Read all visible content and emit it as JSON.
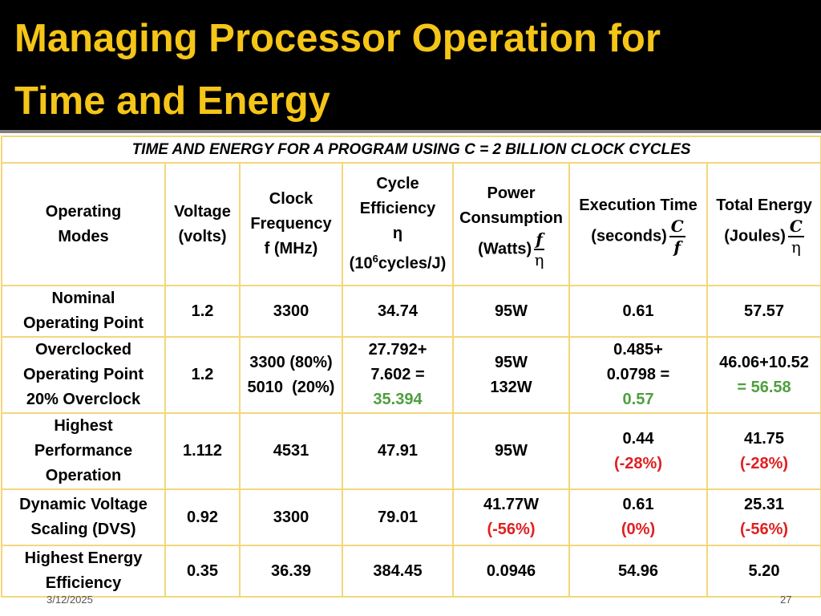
{
  "slide": {
    "title_line1": "Managing Processor Operation for",
    "title_line2": "Time and Energy",
    "date": "3/12/2025",
    "page_number": "27",
    "title_color": "#f5c518"
  },
  "table": {
    "caption": "TIME AND ENERGY FOR A PROGRAM USING C = 2 BILLION CLOCK CYCLES",
    "headers": {
      "modes": [
        "Operating",
        "Modes"
      ],
      "voltage": [
        "Voltage",
        "(volts)"
      ],
      "clock": [
        "Clock",
        "Frequency",
        "f (MHz)"
      ],
      "cycle_eff": [
        "Cycle",
        "Efficiency",
        "η",
        "(10",
        "6",
        "cycles/J)"
      ],
      "power": [
        "Power",
        "Consumption",
        "(Watts)"
      ],
      "power_frac": {
        "num": "f",
        "den": "η"
      },
      "exec": [
        "Execution Time",
        "(seconds)"
      ],
      "exec_frac": {
        "num": "C",
        "den": "f"
      },
      "energy": [
        "Total Energy",
        "(Joules)"
      ],
      "energy_frac": {
        "num": "C",
        "den": "η"
      }
    },
    "rows": [
      {
        "mode": [
          "Nominal",
          "Operating Point"
        ],
        "voltage": "1.2",
        "clock": [
          "3300"
        ],
        "eff": [
          "34.74"
        ],
        "power": [
          "95W"
        ],
        "exec": [
          "0.61"
        ],
        "energy": [
          "57.57"
        ]
      },
      {
        "mode": [
          "Overclocked",
          "Operating Point",
          "20% Overclock"
        ],
        "voltage": "1.2",
        "clock": [
          "3300 (80%)",
          "5010  (20%)"
        ],
        "eff": [
          "27.792+",
          "7.602 =",
          "35.394"
        ],
        "power": [
          "95W",
          "132W"
        ],
        "exec": [
          "0.485+",
          "0.0798 =",
          "0.57"
        ],
        "energy": [
          "46.06+10.52",
          "= 56.58"
        ]
      },
      {
        "mode": [
          "Highest",
          "Performance",
          "Operation"
        ],
        "voltage": "1.112",
        "clock": [
          "4531"
        ],
        "eff": [
          "47.91"
        ],
        "power": [
          "95W"
        ],
        "exec": [
          "0.44",
          "(-28%)"
        ],
        "energy": [
          "41.75",
          "(-28%)"
        ]
      },
      {
        "mode": [
          "Dynamic Voltage",
          "Scaling (DVS)"
        ],
        "voltage": "0.92",
        "clock": [
          "3300"
        ],
        "eff": [
          "79.01"
        ],
        "power": [
          "41.77W",
          "(-56%)"
        ],
        "exec": [
          "0.61",
          "(0%)"
        ],
        "energy": [
          "25.31",
          "(-56%)"
        ]
      },
      {
        "mode": [
          "Highest Energy",
          "Efficiency"
        ],
        "voltage": "0.35",
        "clock": [
          "36.39"
        ],
        "eff": [
          "384.45"
        ],
        "power": [
          "0.0946"
        ],
        "exec": [
          "54.96"
        ],
        "energy": [
          "5.20"
        ]
      }
    ]
  }
}
